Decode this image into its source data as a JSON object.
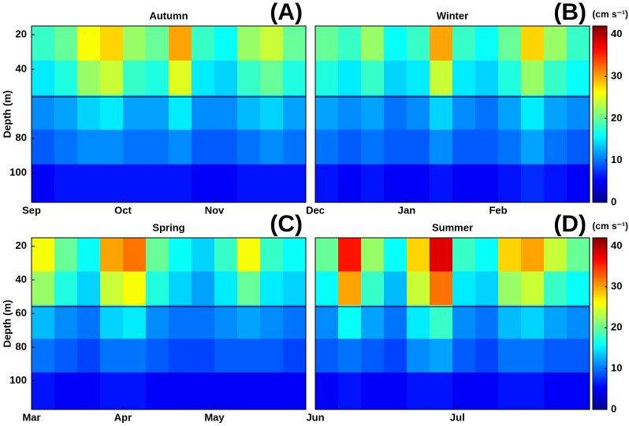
{
  "chart_data": [
    {
      "type": "heatmap",
      "title": "Autumn",
      "panel_label": "(A)",
      "ylabel": "Depth (m)",
      "colormap": "jet",
      "clim": [
        0,
        42
      ],
      "reference_depth": 56,
      "ylim": [
        15,
        117
      ],
      "y_inverted": true,
      "yticks": [
        20,
        40,
        80,
        100
      ],
      "xlim": [
        0,
        3
      ],
      "xticks": [
        {
          "value": 0,
          "label": "Sep"
        },
        {
          "value": 1,
          "label": "Oct"
        },
        {
          "value": 2,
          "label": "Nov"
        }
      ],
      "depths": [
        25,
        45,
        65,
        85,
        105
      ],
      "z": [
        [
          18,
          20,
          26,
          28,
          22,
          20,
          30,
          18,
          16,
          22,
          24,
          20
        ],
        [
          15,
          17,
          22,
          24,
          18,
          17,
          25,
          15,
          14,
          18,
          20,
          17
        ],
        [
          11,
          12,
          14,
          15,
          12,
          12,
          15,
          11,
          11,
          13,
          14,
          12
        ],
        [
          9,
          10,
          11,
          11,
          10,
          10,
          11,
          9,
          9,
          10,
          11,
          10
        ],
        [
          5,
          6,
          6,
          6,
          6,
          6,
          6,
          5,
          5,
          6,
          6,
          6
        ]
      ]
    },
    {
      "type": "heatmap",
      "title": "Winter",
      "panel_label": "(B)",
      "colormap": "jet",
      "clim": [
        0,
        42
      ],
      "reference_depth": 56,
      "ylim": [
        15,
        117
      ],
      "y_inverted": true,
      "xlim": [
        0,
        3
      ],
      "xticks": [
        {
          "value": 0,
          "label": "Dec"
        },
        {
          "value": 1,
          "label": "Jan"
        },
        {
          "value": 2,
          "label": "Feb"
        }
      ],
      "depths": [
        25,
        45,
        65,
        85,
        105
      ],
      "z": [
        [
          20,
          18,
          22,
          16,
          18,
          30,
          18,
          16,
          20,
          28,
          22,
          18
        ],
        [
          17,
          15,
          18,
          14,
          15,
          24,
          15,
          14,
          17,
          22,
          18,
          16
        ],
        [
          12,
          11,
          12,
          10,
          11,
          14,
          11,
          10,
          12,
          15,
          12,
          11
        ],
        [
          10,
          9,
          10,
          9,
          9,
          11,
          9,
          9,
          10,
          12,
          10,
          9
        ],
        [
          6,
          5,
          6,
          5,
          5,
          6,
          5,
          5,
          6,
          7,
          6,
          5
        ]
      ],
      "colorbar": {
        "label": "(cm s⁻¹)",
        "ticks": [
          0,
          10,
          20,
          30,
          40
        ]
      }
    },
    {
      "type": "heatmap",
      "title": "Spring",
      "panel_label": "(C)",
      "ylabel": "Depth (m)",
      "colormap": "jet",
      "clim": [
        0,
        42
      ],
      "reference_depth": 56,
      "ylim": [
        15,
        117
      ],
      "y_inverted": true,
      "yticks": [
        20,
        40,
        60,
        80,
        100
      ],
      "xlim": [
        0,
        3
      ],
      "xticks": [
        {
          "value": 0,
          "label": "Mar"
        },
        {
          "value": 1,
          "label": "Apr"
        },
        {
          "value": 2,
          "label": "May"
        }
      ],
      "depths": [
        25,
        45,
        65,
        85,
        105
      ],
      "z": [
        [
          26,
          20,
          16,
          30,
          32,
          20,
          16,
          14,
          18,
          26,
          18,
          16
        ],
        [
          22,
          17,
          14,
          24,
          26,
          17,
          14,
          12,
          15,
          20,
          15,
          14
        ],
        [
          13,
          11,
          10,
          14,
          15,
          11,
          10,
          10,
          11,
          12,
          11,
          10
        ],
        [
          10,
          9,
          8,
          10,
          10,
          9,
          8,
          8,
          9,
          9,
          9,
          8
        ],
        [
          6,
          5,
          5,
          6,
          6,
          5,
          5,
          5,
          5,
          5,
          5,
          5
        ]
      ]
    },
    {
      "type": "heatmap",
      "title": "Summer",
      "panel_label": "(D)",
      "colormap": "jet",
      "clim": [
        0,
        42
      ],
      "reference_depth": 56,
      "ylim": [
        15,
        117
      ],
      "y_inverted": true,
      "xlim": [
        0,
        1.93
      ],
      "xticks": [
        {
          "value": 0,
          "label": "Jun"
        },
        {
          "value": 1,
          "label": "Jul"
        }
      ],
      "depths": [
        25,
        45,
        65,
        85,
        105
      ],
      "z": [
        [
          20,
          36,
          22,
          16,
          28,
          38,
          18,
          16,
          28,
          30,
          24,
          20
        ],
        [
          16,
          30,
          18,
          13,
          24,
          32,
          15,
          14,
          22,
          24,
          18,
          16
        ],
        [
          11,
          16,
          12,
          10,
          15,
          18,
          11,
          10,
          13,
          14,
          12,
          11
        ],
        [
          9,
          10,
          9,
          8,
          11,
          12,
          9,
          8,
          10,
          10,
          9,
          9
        ],
        [
          5,
          6,
          5,
          5,
          6,
          6,
          5,
          5,
          6,
          6,
          5,
          5
        ]
      ],
      "colorbar": {
        "label": "(cm s⁻¹)",
        "ticks": [
          0,
          10,
          20,
          30,
          40
        ]
      }
    }
  ]
}
